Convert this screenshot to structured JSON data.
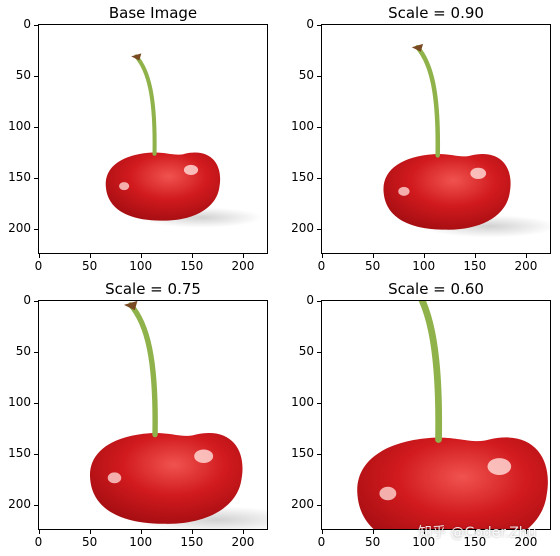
{
  "panels": [
    {
      "title": "Base Image",
      "scale": 1.0
    },
    {
      "title": "Scale = 0.90",
      "scale": 0.9
    },
    {
      "title": "Scale = 0.75",
      "scale": 0.75
    },
    {
      "title": "Scale = 0.60",
      "scale": 0.6
    }
  ],
  "y_ticks": [
    "0",
    "50",
    "100",
    "150",
    "200"
  ],
  "x_ticks": [
    "0",
    "50",
    "100",
    "150",
    "200"
  ],
  "watermark": "知乎 @Coder.Zhu",
  "colors": {
    "cherry_dark": "#9b0b0f",
    "cherry_mid": "#d11a1e",
    "cherry_light": "#f0534f",
    "stem": "#8fb24a",
    "stem_tip": "#7a4a22"
  }
}
